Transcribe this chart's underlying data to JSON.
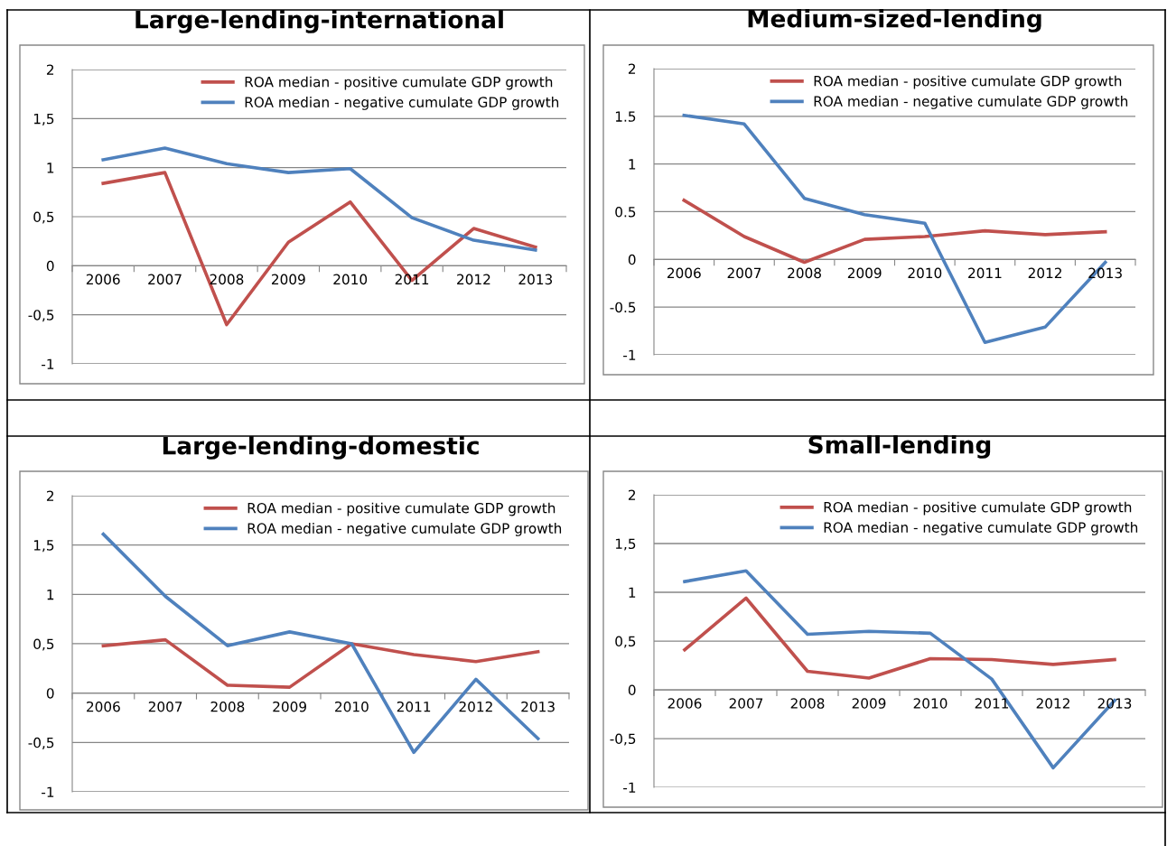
{
  "chart_data": [
    {
      "type": "line",
      "title": "Large-lending-international",
      "categories": [
        "2006",
        "2007",
        "2008",
        "2009",
        "2010",
        "2011",
        "2012",
        "2013"
      ],
      "ylim": [
        -1,
        2
      ],
      "yticks": [
        {
          "value": -1,
          "label": "-1"
        },
        {
          "value": -0.5,
          "label": "-0,5"
        },
        0,
        {
          "value": 0.5,
          "label": "0,5"
        },
        1,
        {
          "value": 1.5,
          "label": "1,5"
        },
        2
      ],
      "grid": "y",
      "legend": "top right",
      "series": [
        {
          "name": "ROA median - positive cumulate GDP growth",
          "color": "#c0504d",
          "values": [
            0.84,
            0.95,
            -0.6,
            0.24,
            0.65,
            -0.15,
            0.38,
            0.19
          ]
        },
        {
          "name": "ROA median - negative cumulate GDP growth",
          "color": "#4f81bd",
          "values": [
            1.08,
            1.2,
            1.04,
            0.95,
            0.99,
            0.49,
            0.26,
            0.16
          ]
        }
      ]
    },
    {
      "type": "line",
      "title": "Medium-sized-lending",
      "categories": [
        "2006",
        "2007",
        "2008",
        "2009",
        "2010",
        "2011",
        "2012",
        "2013"
      ],
      "ylim": [
        -1,
        2
      ],
      "yticks": [
        -1,
        -0.5,
        0,
        0.5,
        1,
        1.5,
        2
      ],
      "grid": "y",
      "legend": "top right",
      "series": [
        {
          "name": "ROA median - positive cumulate GDP growth",
          "color": "#c0504d",
          "values": [
            0.62,
            0.24,
            -0.03,
            0.21,
            0.24,
            0.3,
            0.26,
            0.29
          ]
        },
        {
          "name": "ROA median - negative cumulate GDP growth",
          "color": "#4f81bd",
          "values": [
            1.51,
            1.42,
            0.64,
            0.47,
            0.38,
            -0.87,
            -0.71,
            -0.03
          ]
        }
      ]
    },
    {
      "type": "line",
      "title": "Large-lending-domestic",
      "categories": [
        "2006",
        "2007",
        "2008",
        "2009",
        "2010",
        "2011",
        "2012",
        "2013"
      ],
      "ylim": [
        -1,
        2
      ],
      "yticks": [
        {
          "value": -1,
          "label": "-1"
        },
        {
          "value": -0.5,
          "label": "-0,5"
        },
        0,
        {
          "value": 0.5,
          "label": "0,5"
        },
        1,
        {
          "value": 1.5,
          "label": "1,5"
        },
        2
      ],
      "grid": "y",
      "legend": "top right",
      "series": [
        {
          "name": "ROA median - positive cumulate GDP growth",
          "color": "#c0504d",
          "values": [
            0.48,
            0.54,
            0.08,
            0.06,
            0.5,
            0.39,
            0.32,
            0.42
          ]
        },
        {
          "name": "ROA median - negative cumulate GDP growth",
          "color": "#4f81bd",
          "values": [
            1.61,
            0.98,
            0.48,
            0.62,
            0.5,
            -0.6,
            0.14,
            -0.46
          ]
        }
      ]
    },
    {
      "type": "line",
      "title": "Small-lending",
      "categories": [
        "2006",
        "2007",
        "2008",
        "2009",
        "2010",
        "2011",
        "2012",
        "2013"
      ],
      "ylim": [
        -1,
        2
      ],
      "yticks": [
        {
          "value": -1,
          "label": "-1"
        },
        {
          "value": -0.5,
          "label": "-0,5"
        },
        0,
        {
          "value": 0.5,
          "label": "0,5"
        },
        1,
        {
          "value": 1.5,
          "label": "1,5"
        },
        2
      ],
      "grid": "y",
      "legend": "top right",
      "series": [
        {
          "name": "ROA median - positive cumulate GDP growth",
          "color": "#c0504d",
          "values": [
            0.41,
            0.94,
            0.19,
            0.12,
            0.32,
            0.31,
            0.26,
            0.31
          ]
        },
        {
          "name": "ROA median - negative cumulate GDP growth",
          "color": "#4f81bd",
          "values": [
            1.11,
            1.22,
            0.57,
            0.6,
            0.58,
            0.11,
            -0.8,
            -0.11
          ]
        }
      ]
    }
  ]
}
